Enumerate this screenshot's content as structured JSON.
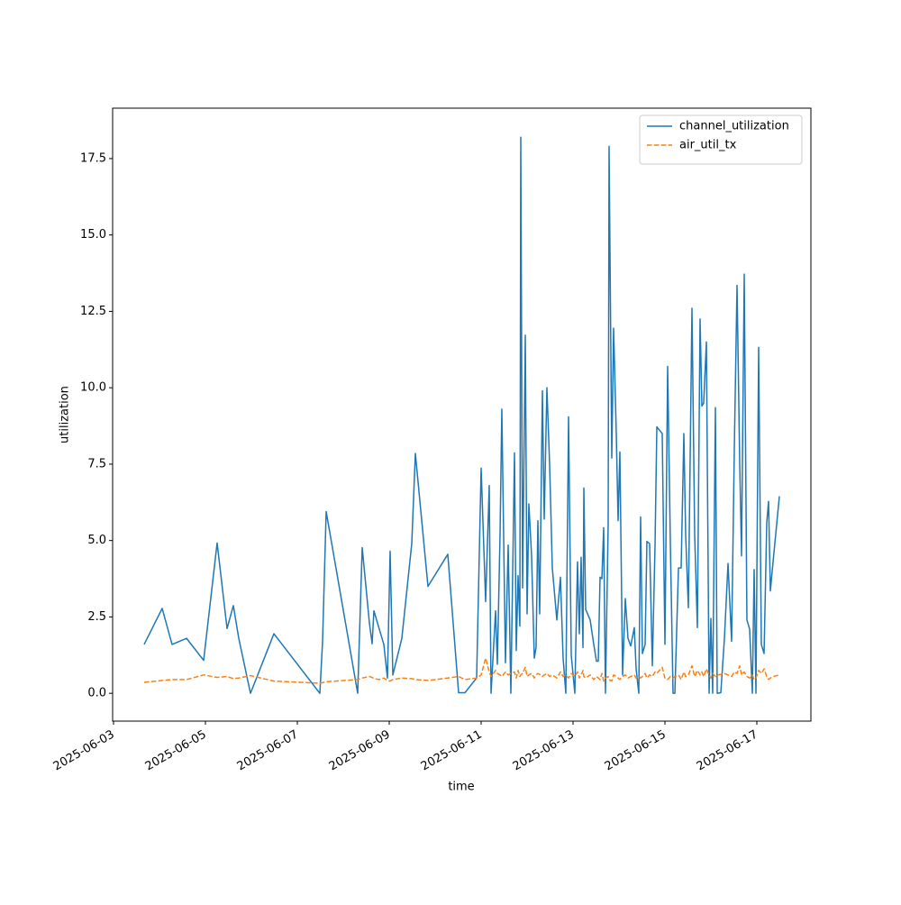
{
  "chart_data": {
    "type": "line",
    "x_label": "time",
    "y_label": "utilization",
    "x": [
      "2025-06-03T16:00",
      "2025-06-04T01:25",
      "2025-06-04T06:35",
      "2025-06-04T14:07",
      "2025-06-04T23:04",
      "2025-06-05T06:07",
      "2025-06-05T11:18",
      "2025-06-05T14:35",
      "2025-06-05T17:25",
      "2025-06-05T23:32",
      "2025-06-06T11:46",
      "2025-06-07T11:46",
      "2025-06-07T13:11",
      "2025-06-07T15:04",
      "2025-06-08T07:32",
      "2025-06-08T09:53",
      "2025-06-08T13:39",
      "2025-06-08T15:04",
      "2025-06-08T16:00",
      "2025-06-08T18:49",
      "2025-06-08T21:11",
      "2025-06-08T23:04",
      "2025-06-09T00:28",
      "2025-06-09T01:53",
      "2025-06-09T06:35",
      "2025-06-09T11:46",
      "2025-06-09T13:39",
      "2025-06-09T20:14",
      "2025-06-10T06:35",
      "2025-06-10T12:14",
      "2025-06-10T15:32",
      "2025-06-10T21:39",
      "2025-06-11T00:00",
      "2025-06-11T02:21",
      "2025-06-11T04:14",
      "2025-06-11T05:11",
      "2025-06-11T07:32",
      "2025-06-11T08:28",
      "2025-06-11T09:53",
      "2025-06-11T10:49",
      "2025-06-11T12:42",
      "2025-06-11T14:07",
      "2025-06-11T15:32",
      "2025-06-11T17:25",
      "2025-06-11T18:21",
      "2025-06-11T19:18",
      "2025-06-11T20:14",
      "2025-06-11T20:42",
      "2025-06-11T21:39",
      "2025-06-11T23:04",
      "2025-06-12T00:00",
      "2025-06-12T00:56",
      "2025-06-12T02:21",
      "2025-06-12T03:46",
      "2025-06-12T04:42",
      "2025-06-12T05:39",
      "2025-06-12T06:35",
      "2025-06-12T08:00",
      "2025-06-12T08:57",
      "2025-06-12T10:21",
      "2025-06-12T11:46",
      "2025-06-12T13:11",
      "2025-06-12T15:32",
      "2025-06-12T17:25",
      "2025-06-12T18:49",
      "2025-06-12T20:14",
      "2025-06-12T21:39",
      "2025-06-12T23:04",
      "2025-06-13T00:56",
      "2025-06-13T02:21",
      "2025-06-13T03:18",
      "2025-06-13T04:14",
      "2025-06-13T05:11",
      "2025-06-13T05:39",
      "2025-06-13T06:35",
      "2025-06-13T08:57",
      "2025-06-13T10:49",
      "2025-06-13T12:14",
      "2025-06-13T13:11",
      "2025-06-13T14:07",
      "2025-06-13T15:04",
      "2025-06-13T16:00",
      "2025-06-13T16:56",
      "2025-06-13T18:21",
      "2025-06-13T18:49",
      "2025-06-13T20:14",
      "2025-06-13T21:11",
      "2025-06-13T22:35",
      "2025-06-13T23:32",
      "2025-06-14T00:28",
      "2025-06-14T01:53",
      "2025-06-14T03:18",
      "2025-06-14T04:42",
      "2025-06-14T06:07",
      "2025-06-14T08:00",
      "2025-06-14T08:57",
      "2025-06-14T10:21",
      "2025-06-14T11:18",
      "2025-06-14T12:14",
      "2025-06-14T13:39",
      "2025-06-14T14:35",
      "2025-06-14T16:00",
      "2025-06-14T17:25",
      "2025-06-14T18:49",
      "2025-06-14T19:46",
      "2025-06-14T22:35",
      "2025-06-15T00:00",
      "2025-06-15T01:25",
      "2025-06-15T02:49",
      "2025-06-15T04:14",
      "2025-06-15T05:11",
      "2025-06-15T07:04",
      "2025-06-15T08:28",
      "2025-06-15T09:53",
      "2025-06-15T10:49",
      "2025-06-15T12:14",
      "2025-06-15T14:07",
      "2025-06-15T15:32",
      "2025-06-15T16:56",
      "2025-06-15T18:21",
      "2025-06-15T19:18",
      "2025-06-15T20:14",
      "2025-06-15T21:39",
      "2025-06-15T23:04",
      "2025-06-16T00:00",
      "2025-06-16T00:56",
      "2025-06-16T02:21",
      "2025-06-16T03:18",
      "2025-06-16T05:11",
      "2025-06-16T07:04",
      "2025-06-16T08:57",
      "2025-06-16T10:49",
      "2025-06-16T12:14",
      "2025-06-16T13:39",
      "2025-06-16T15:04",
      "2025-06-16T16:00",
      "2025-06-16T17:25",
      "2025-06-16T18:49",
      "2025-06-16T20:14",
      "2025-06-16T21:39",
      "2025-06-16T22:35",
      "2025-06-16T23:32",
      "2025-06-17T00:56",
      "2025-06-17T02:21",
      "2025-06-17T03:46",
      "2025-06-17T05:11",
      "2025-06-17T06:07",
      "2025-06-17T07:04",
      "2025-06-17T08:28",
      "2025-06-17T11:46"
    ],
    "series": [
      {
        "name": "channel_utilization",
        "color": "#1f77b4",
        "dash": false,
        "values": [
          1.6,
          2.78,
          1.6,
          1.8,
          1.08,
          4.92,
          2.12,
          2.87,
          1.8,
          0,
          1.95,
          0,
          1.7,
          5.95,
          0,
          4.77,
          2.3,
          1.62,
          2.7,
          2.1,
          1.6,
          0.5,
          4.65,
          0.6,
          1.8,
          4.9,
          7.85,
          3.5,
          4.55,
          0.02,
          0.02,
          0.5,
          7.37,
          3,
          6.8,
          0,
          2.7,
          0.95,
          5.2,
          9.3,
          1.0,
          4.85,
          0,
          7.87,
          1.4,
          3.85,
          2.2,
          18.2,
          3.45,
          11.72,
          2.6,
          6.2,
          4.5,
          1.15,
          1.5,
          5.65,
          2.6,
          9.9,
          5.7,
          10,
          7.5,
          4.1,
          2.4,
          3.8,
          1.15,
          0,
          9.05,
          1.25,
          0,
          4.3,
          1.95,
          4.45,
          1.5,
          6.72,
          2.75,
          2.4,
          1.6,
          1.05,
          1.05,
          3.8,
          3.75,
          5.42,
          0,
          5.5,
          17.9,
          7.7,
          11.95,
          8.5,
          5.65,
          7.9,
          0.6,
          3.1,
          1.8,
          1.55,
          2.15,
          0.8,
          0,
          5.77,
          1.3,
          1.6,
          4.97,
          4.9,
          0.9,
          4.8,
          8.72,
          8.5,
          1.6,
          10.7,
          4.95,
          0,
          0,
          4.1,
          4.1,
          8.5,
          5.2,
          2.8,
          12.6,
          5.2,
          2.15,
          12.25,
          9.4,
          9.5,
          11.5,
          0,
          2.45,
          0,
          9.35,
          0,
          0.02,
          1.8,
          4.25,
          1.7,
          8,
          13.35,
          7.5,
          4.5,
          13.72,
          2.4,
          2.1,
          0,
          4.05,
          0,
          11.32,
          1.6,
          1.3,
          5.6,
          6.28,
          3.35,
          4.3,
          6.45
        ]
      },
      {
        "name": "air_util_tx",
        "color": "#ff7f0e",
        "dash": true,
        "values": [
          0.36,
          0.42,
          0.45,
          0.45,
          0.6,
          0.52,
          0.55,
          0.48,
          0.5,
          0.58,
          0.4,
          0.33,
          0.35,
          0.38,
          0.45,
          0.5,
          0.55,
          0.52,
          0.48,
          0.45,
          0.5,
          0.42,
          0.4,
          0.45,
          0.5,
          0.48,
          0.45,
          0.42,
          0.5,
          0.55,
          0.45,
          0.5,
          0.6,
          1.15,
          0.7,
          0.55,
          0.75,
          0.65,
          0.6,
          0.55,
          0.7,
          0.6,
          0.65,
          0.7,
          0.5,
          0.75,
          0.55,
          0.6,
          0.65,
          0.85,
          0.55,
          0.6,
          0.65,
          0.5,
          0.6,
          0.65,
          0.62,
          0.55,
          0.6,
          0.65,
          0.55,
          0.6,
          0.5,
          0.7,
          0.55,
          0.6,
          0.5,
          0.65,
          0.55,
          0.7,
          0.5,
          0.6,
          0.75,
          0.55,
          0.5,
          0.6,
          0.45,
          0.55,
          0.5,
          0.45,
          0.65,
          0.4,
          0.5,
          0.55,
          0.45,
          0.4,
          0.6,
          0.55,
          0.5,
          0.45,
          0.55,
          0.6,
          0.5,
          0.55,
          0.6,
          0.5,
          0.55,
          0.5,
          0.55,
          0.65,
          0.5,
          0.6,
          0.55,
          0.7,
          0.65,
          0.85,
          0.5,
          0.45,
          0.55,
          0.5,
          0.55,
          0.6,
          0.45,
          0.7,
          0.55,
          0.6,
          0.9,
          0.55,
          0.75,
          0.6,
          0.7,
          0.55,
          0.8,
          0.6,
          0.5,
          0.65,
          0.55,
          0.6,
          0.62,
          0.65,
          0.6,
          0.55,
          0.7,
          0.65,
          0.9,
          0.6,
          0.7,
          0.55,
          0.5,
          0.6,
          0.45,
          0.5,
          0.75,
          0.65,
          0.8,
          0.55,
          0.45,
          0.5,
          0.55,
          0.6
        ]
      }
    ],
    "xlim": [
      "2025-06-02T23:32",
      "2025-06-18T04:14"
    ],
    "xticks": [
      "2025-06-03",
      "2025-06-05",
      "2025-06-07",
      "2025-06-09",
      "2025-06-11",
      "2025-06-13",
      "2025-06-15",
      "2025-06-17"
    ],
    "ylim": [
      -0.91,
      19.15
    ],
    "yticks": [
      {
        "value": 0,
        "label": "0.0"
      },
      2.5,
      {
        "value": 5,
        "label": "5.0"
      },
      7.5,
      {
        "value": 10,
        "label": "10.0"
      },
      12.5,
      {
        "value": 15,
        "label": "15.0"
      },
      17.5
    ],
    "legend": "upper right",
    "grid": false
  }
}
